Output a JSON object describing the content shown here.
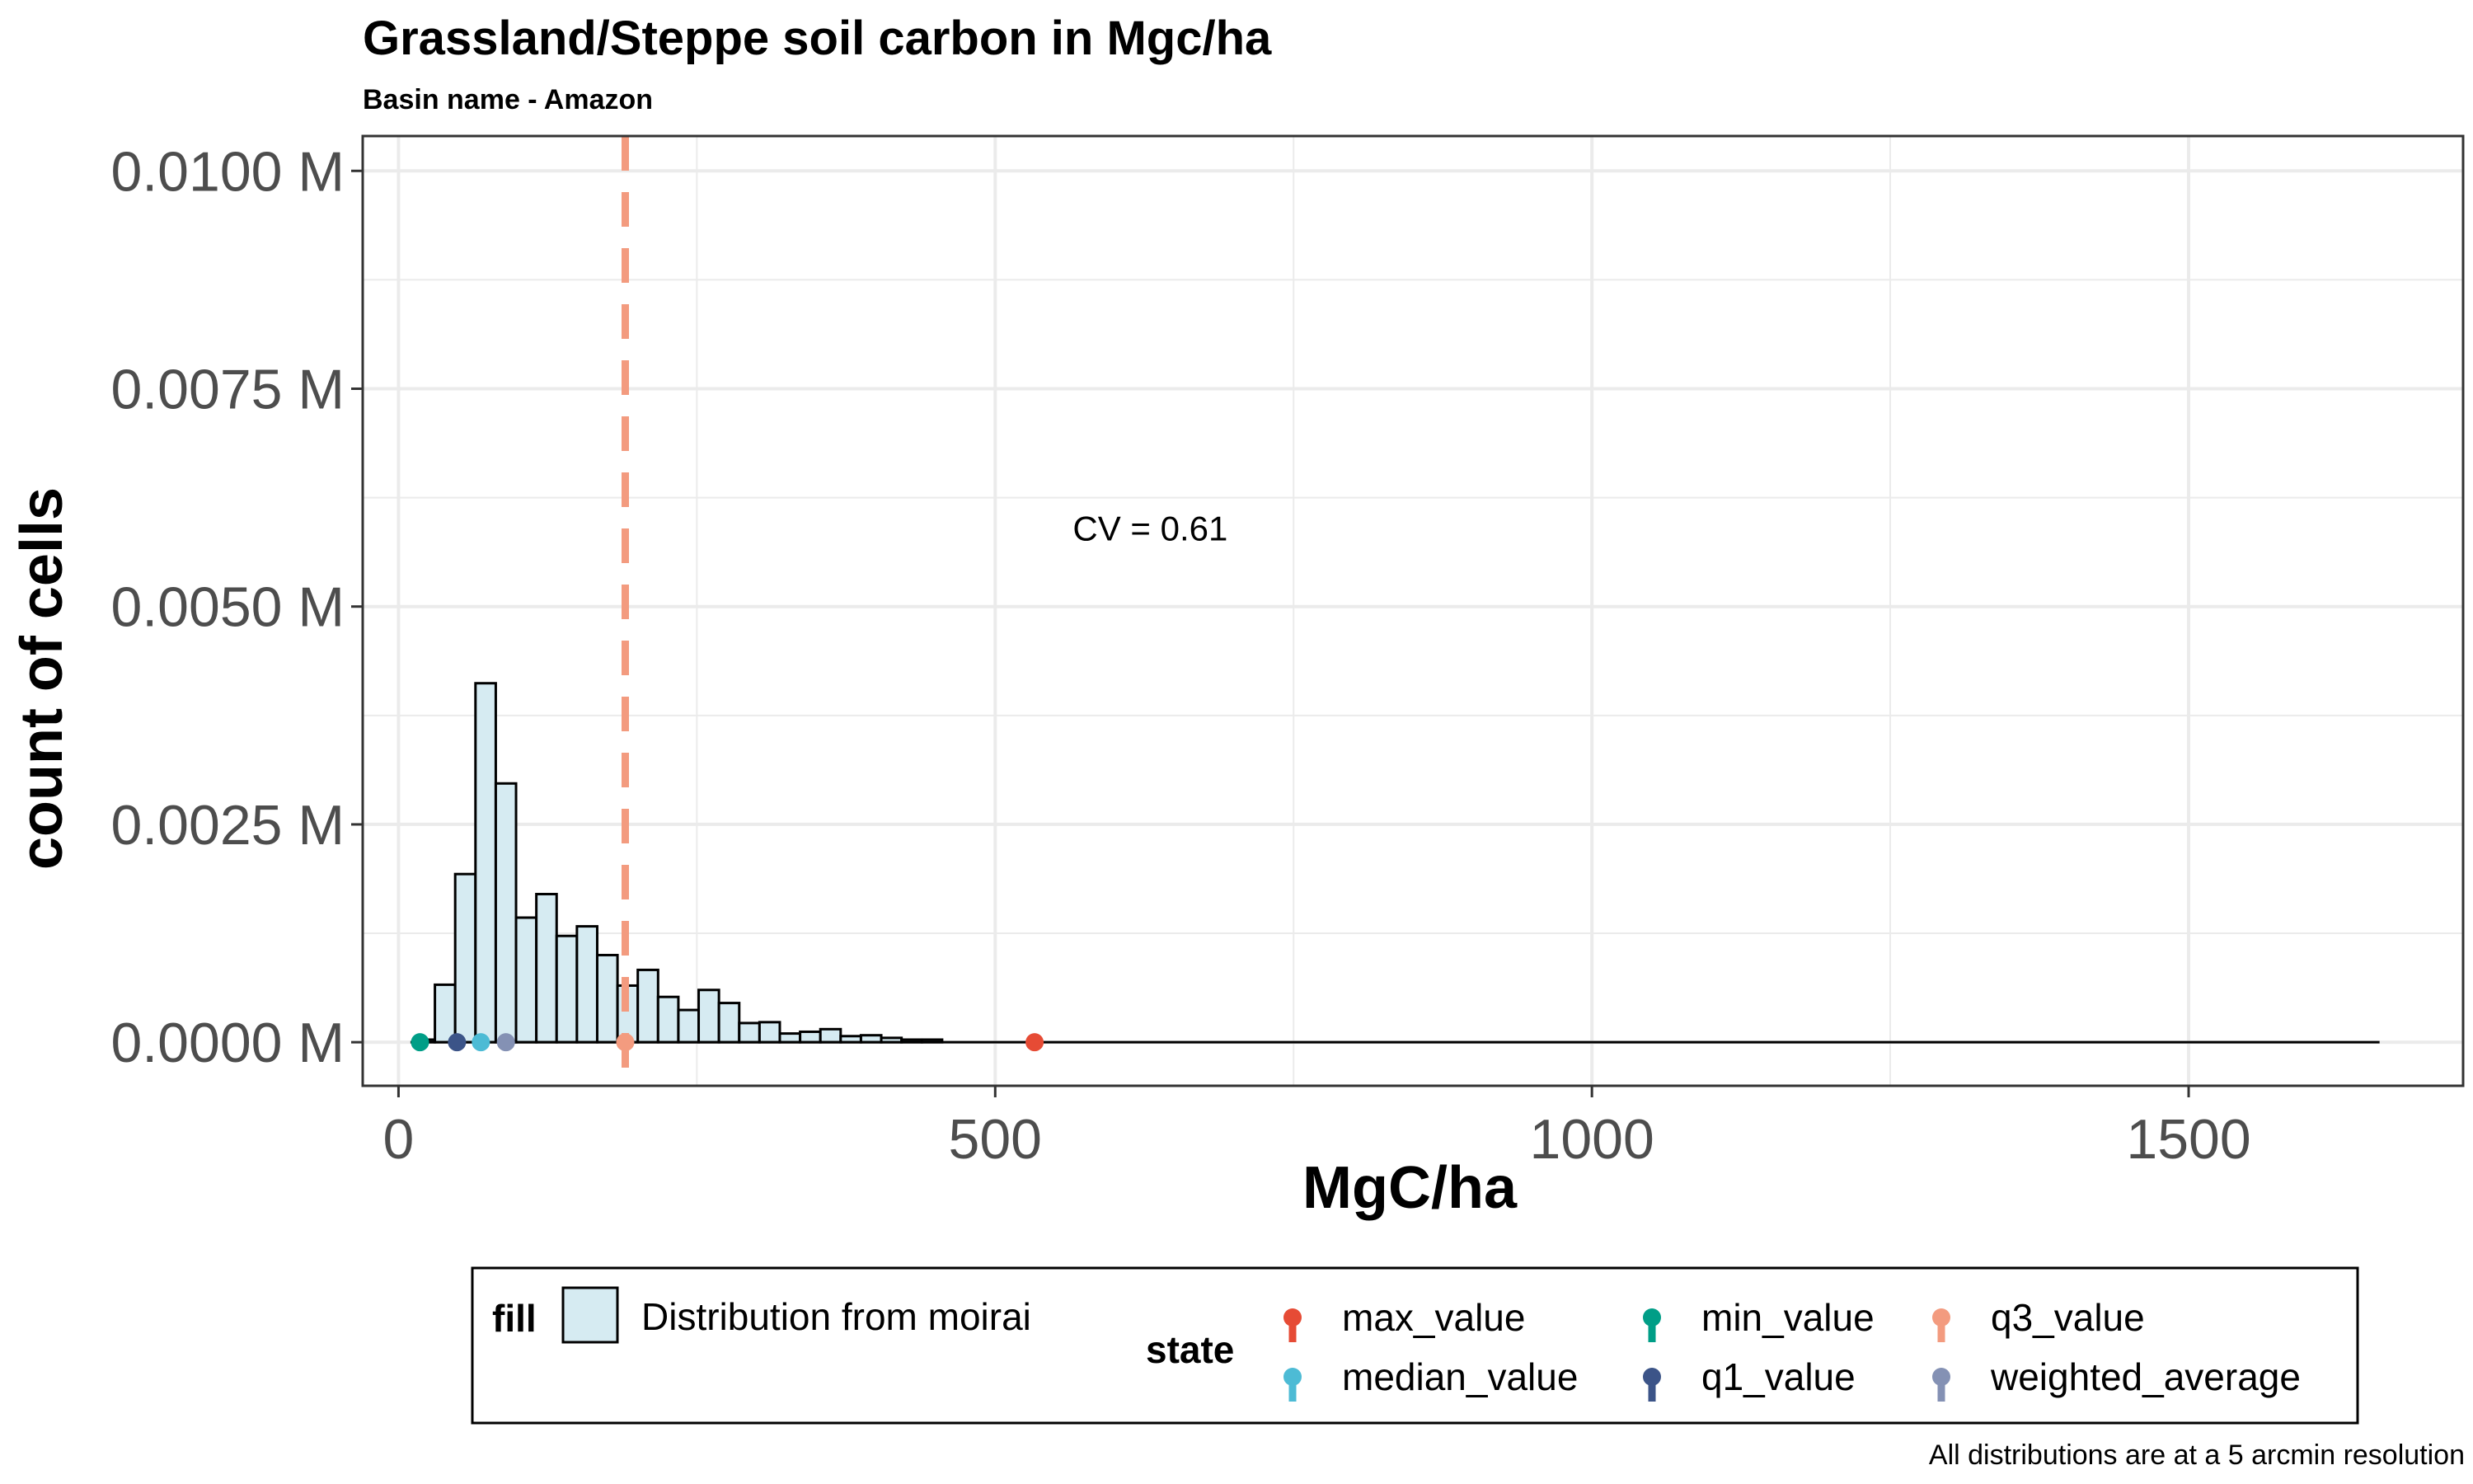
{
  "chart_data": {
    "type": "bar",
    "title": "Grassland/Steppe soil carbon in Mgc/ha",
    "subtitle": "Basin name - Amazon",
    "xlabel": "MgC/ha",
    "ylabel": "count of cells",
    "xlim": [
      -30,
      1730
    ],
    "ylim": [
      -0.0005,
      0.0104
    ],
    "x_ticks": [
      0,
      500,
      1000,
      1500
    ],
    "x_tick_labels": [
      "0",
      "500",
      "1000",
      "1500"
    ],
    "y_ticks": [
      0,
      0.0025,
      0.005,
      0.0075,
      0.01
    ],
    "y_tick_labels": [
      "0.0000 M",
      "0.0025 M",
      "0.0050 M",
      "0.0075 M",
      "0.0100 M"
    ],
    "grid": true,
    "bin_width": 17,
    "bins": [
      {
        "x": 22,
        "y": 3e-05
      },
      {
        "x": 39,
        "y": 0.00066
      },
      {
        "x": 56,
        "y": 0.00193
      },
      {
        "x": 73,
        "y": 0.00412
      },
      {
        "x": 90,
        "y": 0.00297
      },
      {
        "x": 107,
        "y": 0.00143
      },
      {
        "x": 124,
        "y": 0.0017
      },
      {
        "x": 141,
        "y": 0.00122
      },
      {
        "x": 158,
        "y": 0.00133
      },
      {
        "x": 175,
        "y": 0.001
      },
      {
        "x": 192,
        "y": 0.00065
      },
      {
        "x": 209,
        "y": 0.00083
      },
      {
        "x": 226,
        "y": 0.00052
      },
      {
        "x": 243,
        "y": 0.00037
      },
      {
        "x": 260,
        "y": 0.0006
      },
      {
        "x": 277,
        "y": 0.00045
      },
      {
        "x": 294,
        "y": 0.00022
      },
      {
        "x": 311,
        "y": 0.00023
      },
      {
        "x": 328,
        "y": 0.0001
      },
      {
        "x": 345,
        "y": 0.00012
      },
      {
        "x": 362,
        "y": 0.00015
      },
      {
        "x": 379,
        "y": 7e-05
      },
      {
        "x": 396,
        "y": 8e-05
      },
      {
        "x": 413,
        "y": 5e-05
      },
      {
        "x": 430,
        "y": 3e-05
      },
      {
        "x": 447,
        "y": 3e-05
      }
    ],
    "baseline_range": [
      10,
      1660
    ],
    "points": [
      {
        "state": "min_value",
        "x": 18,
        "color": "#009E87"
      },
      {
        "state": "q1_value",
        "x": 49,
        "color": "#3C5488"
      },
      {
        "state": "median_value",
        "x": 69,
        "color": "#4DBBD5"
      },
      {
        "state": "weighted_average",
        "x": 90,
        "color": "#8491B4"
      },
      {
        "state": "q3_value",
        "x": 190,
        "color": "#F39B7F"
      },
      {
        "state": "max_value",
        "x": 533,
        "color": "#E64B35"
      }
    ],
    "vline": {
      "x": 190,
      "color": "#F39B7F",
      "style": "dashed"
    },
    "annotation": {
      "text": "CV = 0.61",
      "x": 565,
      "y": 0.0059
    },
    "colors": {
      "bar_fill": "#D6EBF2",
      "bar_stroke": "#000000",
      "grid": "#EBEBEB"
    },
    "legend": {
      "position": "bottom",
      "fill_title": "fill",
      "fill_label": "Distribution from moirai",
      "state_title": "state",
      "state_items": [
        {
          "label": "max_value",
          "color": "#E64B35"
        },
        {
          "label": "min_value",
          "color": "#009E87"
        },
        {
          "label": "q3_value",
          "color": "#F39B7F"
        },
        {
          "label": "median_value",
          "color": "#4DBBD5"
        },
        {
          "label": "q1_value",
          "color": "#3C5488"
        },
        {
          "label": "weighted_average",
          "color": "#8491B4"
        }
      ]
    },
    "caption": "All distributions are at a 5 arcmin resolution"
  }
}
